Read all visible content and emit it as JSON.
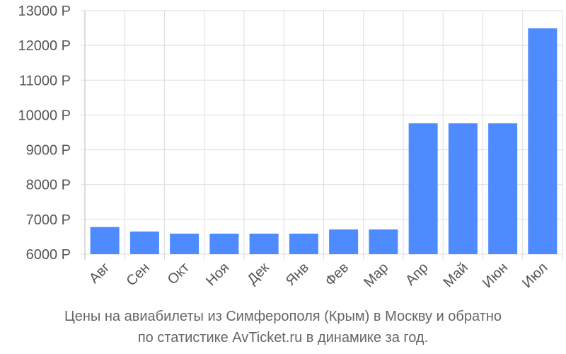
{
  "chart_data": {
    "type": "bar",
    "categories": [
      "Авг",
      "Сен",
      "Окт",
      "Ноя",
      "Дек",
      "Янв",
      "Фев",
      "Мар",
      "Апр",
      "Май",
      "Июн",
      "Июл"
    ],
    "values": [
      6780,
      6650,
      6590,
      6590,
      6590,
      6590,
      6710,
      6710,
      9760,
      9760,
      9760,
      12490
    ],
    "ylim": [
      6000,
      13000
    ],
    "yticks": [
      6000,
      7000,
      8000,
      9000,
      10000,
      11000,
      12000,
      13000
    ],
    "ytick_suffix": " Р",
    "grid": true,
    "bar_color": "#4d8bff",
    "caption": [
      "Цены на авиабилеты из Симферополя (Крым) в Москву и обратно",
      "по статистике AvTicket.ru в динамике за год."
    ]
  }
}
